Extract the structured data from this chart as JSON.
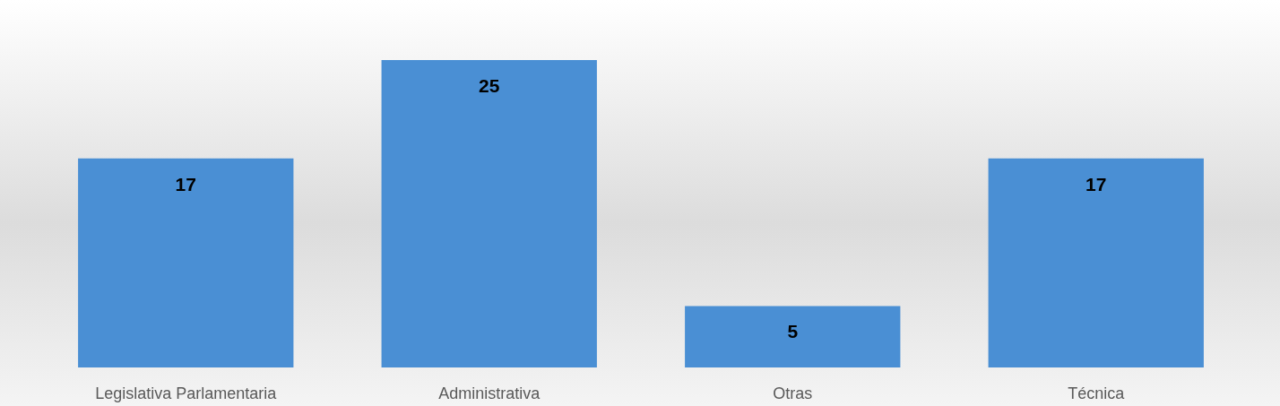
{
  "chart_data": {
    "type": "bar",
    "categories": [
      "Legislativa Parlamentaria",
      "Administrativa",
      "Otras",
      "Técnica"
    ],
    "values": [
      17,
      25,
      5,
      17
    ],
    "color": "#4a8fd4",
    "data_labels": true
  }
}
